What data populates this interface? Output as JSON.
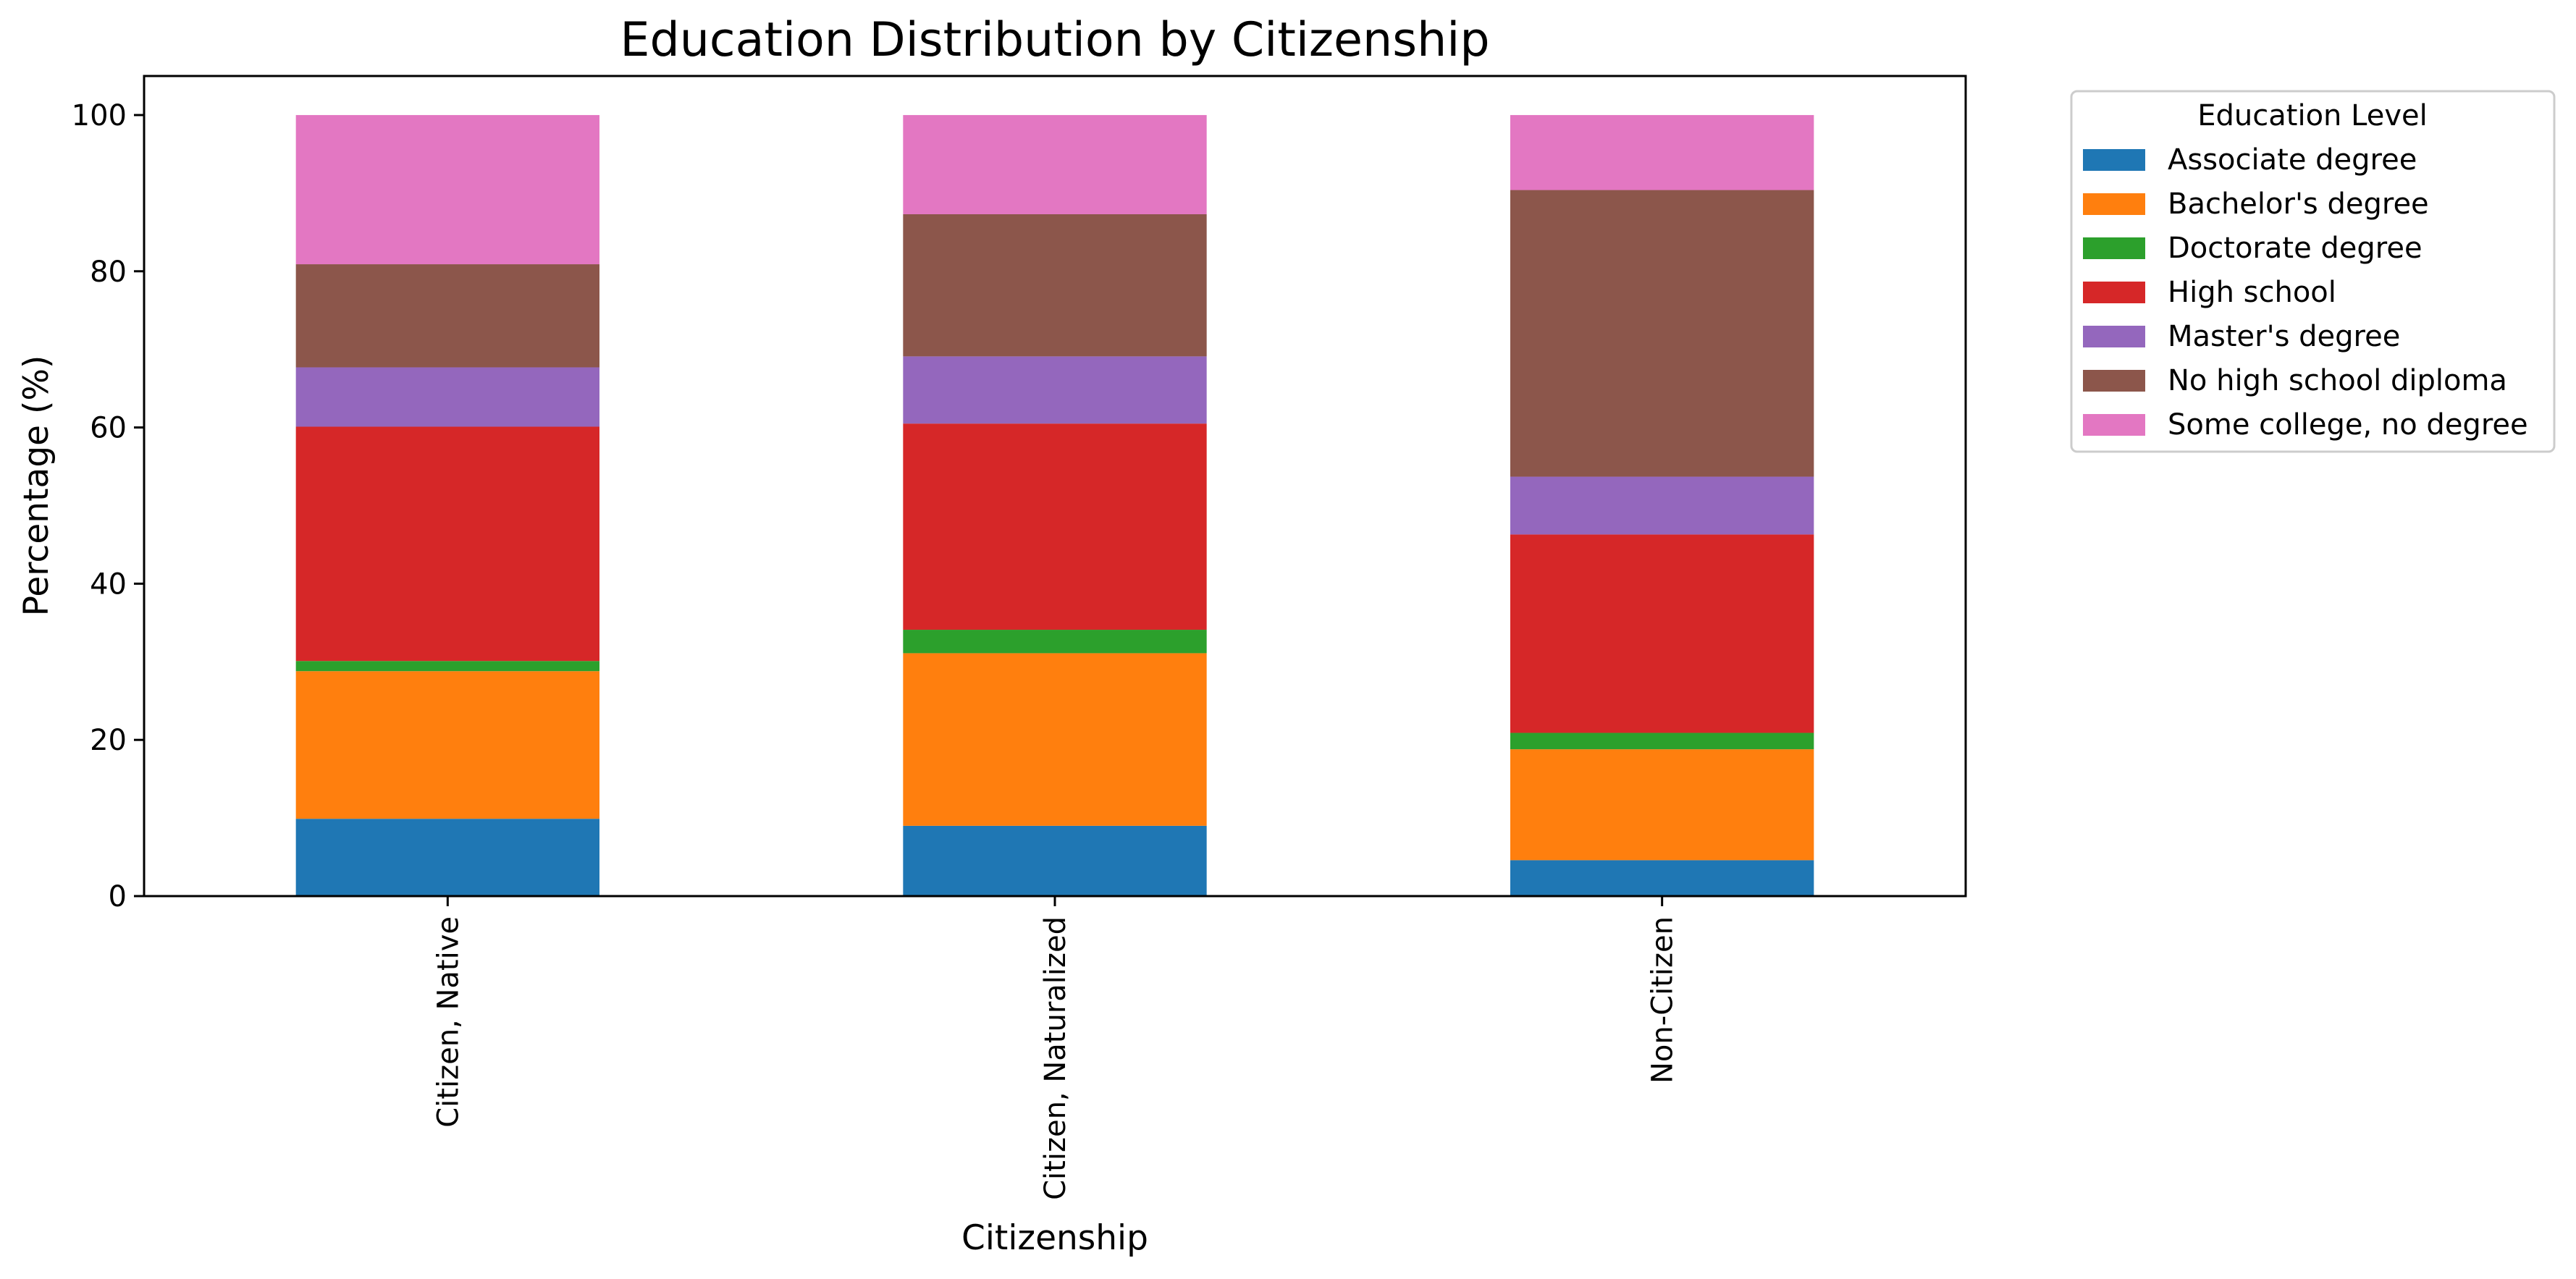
{
  "chart_data": {
    "type": "bar",
    "stacked": true,
    "title": "Education Distribution by Citizenship",
    "xlabel": "Citizenship",
    "ylabel": "Percentage (%)",
    "ylim": [
      0,
      105
    ],
    "yticks": [
      0,
      20,
      40,
      60,
      80,
      100
    ],
    "grid": false,
    "legend": {
      "title": "Education Level",
      "placement": "outside-top-right"
    },
    "categories": [
      "Citizen, Native",
      "Citizen, Naturalized",
      "Non-Citizen"
    ],
    "series": [
      {
        "name": "Associate degree",
        "color": "#1f77b4",
        "values": [
          9.9,
          9.0,
          4.6
        ]
      },
      {
        "name": "Bachelor's degree",
        "color": "#ff7f0e",
        "values": [
          18.9,
          22.1,
          14.2
        ]
      },
      {
        "name": "Doctorate degree",
        "color": "#2ca02c",
        "values": [
          1.3,
          3.0,
          2.1
        ]
      },
      {
        "name": "High school",
        "color": "#d62728",
        "values": [
          30.0,
          26.4,
          25.4
        ]
      },
      {
        "name": "Master's degree",
        "color": "#9467bd",
        "values": [
          7.6,
          8.6,
          7.4
        ]
      },
      {
        "name": "No high school diploma",
        "color": "#8c564b",
        "values": [
          13.2,
          18.2,
          36.7
        ]
      },
      {
        "name": "Some college, no degree",
        "color": "#e377c2",
        "values": [
          19.1,
          12.7,
          9.6
        ]
      }
    ]
  }
}
